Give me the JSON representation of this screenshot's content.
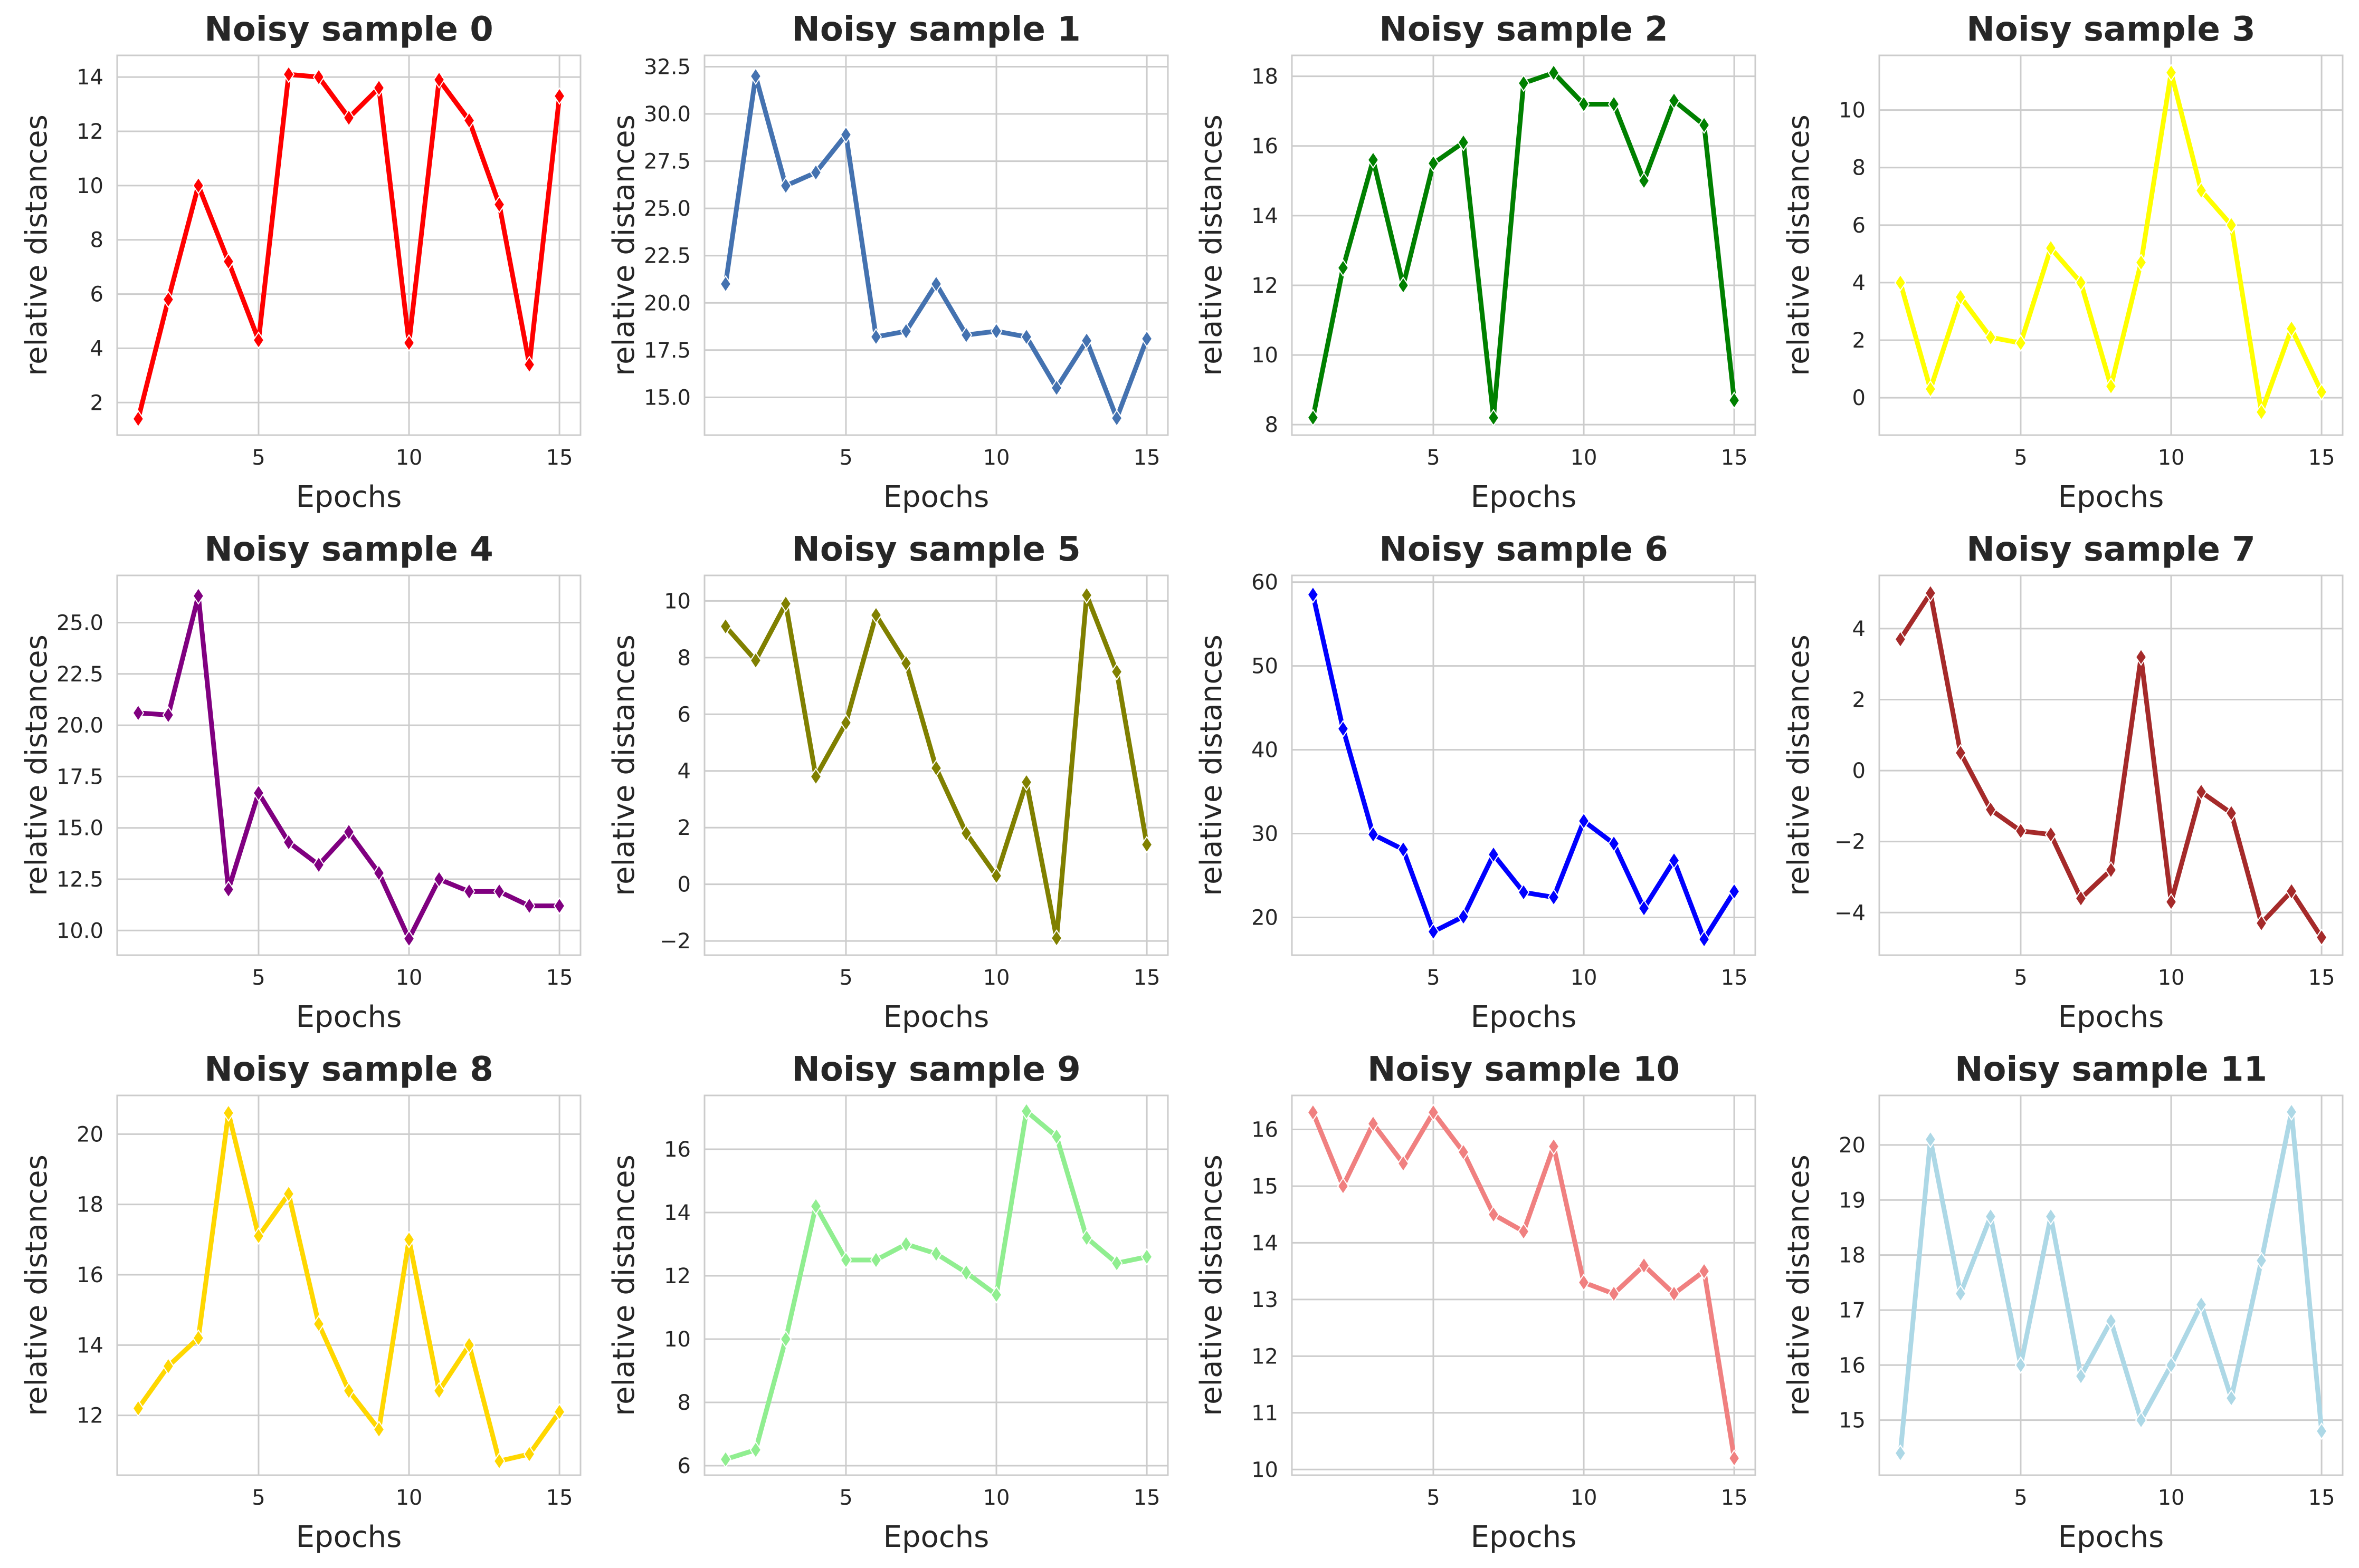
{
  "chart_data": [
    {
      "type": "line",
      "title": "Noisy sample 0",
      "xlabel": "Epochs",
      "ylabel": "relative distances",
      "color": "#ff0000",
      "x": [
        1,
        2,
        3,
        4,
        5,
        6,
        7,
        8,
        9,
        10,
        11,
        12,
        13,
        14,
        15
      ],
      "values": [
        1.4,
        5.8,
        10.0,
        7.2,
        4.3,
        14.1,
        14.0,
        12.5,
        13.6,
        4.2,
        13.9,
        12.4,
        9.3,
        3.4,
        13.3
      ],
      "ylim": [
        0.8,
        14.8
      ],
      "xlim": [
        0.3,
        15.7
      ],
      "yticks": [
        "2",
        "4",
        "6",
        "8",
        "10",
        "12",
        "14"
      ],
      "xticks": [
        "5",
        "10",
        "15"
      ]
    },
    {
      "type": "line",
      "title": "Noisy sample 1",
      "xlabel": "Epochs",
      "ylabel": "relative distances",
      "color": "#4472b0",
      "x": [
        1,
        2,
        3,
        4,
        5,
        6,
        7,
        8,
        9,
        10,
        11,
        12,
        13,
        14,
        15
      ],
      "values": [
        21.0,
        32.0,
        26.2,
        26.9,
        28.9,
        18.2,
        18.5,
        21.0,
        18.3,
        18.5,
        18.2,
        15.5,
        18.0,
        13.9,
        18.1
      ],
      "ylim": [
        13.0,
        33.1
      ],
      "xlim": [
        0.3,
        15.7
      ],
      "yticks": [
        "15.0",
        "17.5",
        "20.0",
        "22.5",
        "25.0",
        "27.5",
        "30.0",
        "32.5"
      ],
      "xticks": [
        "5",
        "10",
        "15"
      ]
    },
    {
      "type": "line",
      "title": "Noisy sample 2",
      "xlabel": "Epochs",
      "ylabel": "relative distances",
      "color": "#008000",
      "x": [
        1,
        2,
        3,
        4,
        5,
        6,
        7,
        8,
        9,
        10,
        11,
        12,
        13,
        14,
        15
      ],
      "values": [
        8.2,
        12.5,
        15.6,
        12.0,
        15.5,
        16.1,
        8.2,
        17.8,
        18.1,
        17.2,
        17.2,
        15.0,
        17.3,
        16.6,
        8.7
      ],
      "ylim": [
        7.7,
        18.6
      ],
      "xlim": [
        0.3,
        15.7
      ],
      "yticks": [
        "8",
        "10",
        "12",
        "14",
        "16",
        "18"
      ],
      "xticks": [
        "5",
        "10",
        "15"
      ]
    },
    {
      "type": "line",
      "title": "Noisy sample 3",
      "xlabel": "Epochs",
      "ylabel": "relative distances",
      "color": "#ffff00",
      "x": [
        1,
        2,
        3,
        4,
        5,
        6,
        7,
        8,
        9,
        10,
        11,
        12,
        13,
        14,
        15
      ],
      "values": [
        4.0,
        0.3,
        3.5,
        2.1,
        1.9,
        5.2,
        4.0,
        0.4,
        4.7,
        11.3,
        7.2,
        6.0,
        -0.5,
        2.4,
        0.2
      ],
      "ylim": [
        -1.3,
        11.9
      ],
      "xlim": [
        0.3,
        15.7
      ],
      "yticks": [
        "0",
        "2",
        "4",
        "6",
        "8",
        "10"
      ],
      "xticks": [
        "5",
        "10",
        "15"
      ]
    },
    {
      "type": "line",
      "title": "Noisy sample 4",
      "xlabel": "Epochs",
      "ylabel": "relative distances",
      "color": "#800080",
      "x": [
        1,
        2,
        3,
        4,
        5,
        6,
        7,
        8,
        9,
        10,
        11,
        12,
        13,
        14,
        15
      ],
      "values": [
        20.6,
        20.5,
        26.3,
        12.0,
        16.7,
        14.3,
        13.2,
        14.8,
        12.8,
        9.6,
        12.5,
        11.9,
        11.9,
        11.2,
        11.2
      ],
      "ylim": [
        8.8,
        27.3
      ],
      "xlim": [
        0.3,
        15.7
      ],
      "yticks": [
        "10.0",
        "12.5",
        "15.0",
        "17.5",
        "20.0",
        "22.5",
        "25.0"
      ],
      "xticks": [
        "5",
        "10",
        "15"
      ]
    },
    {
      "type": "line",
      "title": "Noisy sample 5",
      "xlabel": "Epochs",
      "ylabel": "relative distances",
      "color": "#808000",
      "x": [
        1,
        2,
        3,
        4,
        5,
        6,
        7,
        8,
        9,
        10,
        11,
        12,
        13,
        14,
        15
      ],
      "values": [
        9.1,
        7.9,
        9.9,
        3.8,
        5.7,
        9.5,
        7.8,
        4.1,
        1.8,
        0.3,
        3.6,
        -1.9,
        10.2,
        7.5,
        1.4
      ],
      "ylim": [
        -2.5,
        10.9
      ],
      "xlim": [
        0.3,
        15.7
      ],
      "yticks": [
        "−2",
        "0",
        "2",
        "4",
        "6",
        "8",
        "10"
      ],
      "xticks": [
        "5",
        "10",
        "15"
      ]
    },
    {
      "type": "line",
      "title": "Noisy sample 6",
      "xlabel": "Epochs",
      "ylabel": "relative distances",
      "color": "#0000ff",
      "x": [
        1,
        2,
        3,
        4,
        5,
        6,
        7,
        8,
        9,
        10,
        11,
        12,
        13,
        14,
        15
      ],
      "values": [
        58.5,
        42.5,
        29.9,
        28.1,
        18.3,
        20.1,
        27.5,
        23.0,
        22.4,
        31.5,
        28.8,
        21.1,
        26.8,
        17.4,
        23.1
      ],
      "ylim": [
        15.5,
        60.8
      ],
      "xlim": [
        0.3,
        15.7
      ],
      "yticks": [
        "20",
        "30",
        "40",
        "50",
        "60"
      ],
      "xticks": [
        "5",
        "10",
        "15"
      ]
    },
    {
      "type": "line",
      "title": "Noisy sample 7",
      "xlabel": "Epochs",
      "ylabel": "relative distances",
      "color": "#a52a2a",
      "x": [
        1,
        2,
        3,
        4,
        5,
        6,
        7,
        8,
        9,
        10,
        11,
        12,
        13,
        14,
        15
      ],
      "values": [
        3.7,
        5.0,
        0.5,
        -1.1,
        -1.7,
        -1.8,
        -3.6,
        -2.8,
        3.2,
        -3.7,
        -0.6,
        -1.2,
        -4.3,
        -3.4,
        -4.7
      ],
      "ylim": [
        -5.2,
        5.5
      ],
      "xlim": [
        0.3,
        15.7
      ],
      "yticks": [
        "−4",
        "−2",
        "0",
        "2",
        "4"
      ],
      "xticks": [
        "5",
        "10",
        "15"
      ]
    },
    {
      "type": "line",
      "title": "Noisy sample 8",
      "xlabel": "Epochs",
      "ylabel": "relative distances",
      "color": "#ffd700",
      "x": [
        1,
        2,
        3,
        4,
        5,
        6,
        7,
        8,
        9,
        10,
        11,
        12,
        13,
        14,
        15
      ],
      "values": [
        12.2,
        13.4,
        14.2,
        20.6,
        17.1,
        18.3,
        14.6,
        12.7,
        11.6,
        17.0,
        12.7,
        14.0,
        10.7,
        10.9,
        12.1
      ],
      "ylim": [
        10.3,
        21.1
      ],
      "xlim": [
        0.3,
        15.7
      ],
      "yticks": [
        "12",
        "14",
        "16",
        "18",
        "20"
      ],
      "xticks": [
        "5",
        "10",
        "15"
      ]
    },
    {
      "type": "line",
      "title": "Noisy sample 9",
      "xlabel": "Epochs",
      "ylabel": "relative distances",
      "color": "#90ee90",
      "x": [
        1,
        2,
        3,
        4,
        5,
        6,
        7,
        8,
        9,
        10,
        11,
        12,
        13,
        14,
        15
      ],
      "values": [
        6.2,
        6.5,
        10.0,
        14.2,
        12.5,
        12.5,
        13.0,
        12.7,
        12.1,
        11.4,
        17.2,
        16.4,
        13.2,
        12.4,
        12.6
      ],
      "ylim": [
        5.7,
        17.7
      ],
      "xlim": [
        0.3,
        15.7
      ],
      "yticks": [
        "6",
        "8",
        "10",
        "12",
        "14",
        "16"
      ],
      "xticks": [
        "5",
        "10",
        "15"
      ]
    },
    {
      "type": "line",
      "title": "Noisy sample 10",
      "xlabel": "Epochs",
      "ylabel": "relative distances",
      "color": "#f08080",
      "x": [
        1,
        2,
        3,
        4,
        5,
        6,
        7,
        8,
        9,
        10,
        11,
        12,
        13,
        14,
        15
      ],
      "values": [
        16.3,
        15.0,
        16.1,
        15.4,
        16.3,
        15.6,
        14.5,
        14.2,
        15.7,
        13.3,
        13.1,
        13.6,
        13.1,
        13.5,
        10.2
      ],
      "ylim": [
        9.9,
        16.6
      ],
      "xlim": [
        0.3,
        15.7
      ],
      "yticks": [
        "10",
        "11",
        "12",
        "13",
        "14",
        "15",
        "16"
      ],
      "xticks": [
        "5",
        "10",
        "15"
      ]
    },
    {
      "type": "line",
      "title": "Noisy sample 11",
      "xlabel": "Epochs",
      "ylabel": "relative distances",
      "color": "#add8e6",
      "x": [
        1,
        2,
        3,
        4,
        5,
        6,
        7,
        8,
        9,
        10,
        11,
        12,
        13,
        14,
        15
      ],
      "values": [
        14.4,
        20.1,
        17.3,
        18.7,
        16.0,
        18.7,
        15.8,
        16.8,
        15.0,
        16.0,
        17.1,
        15.4,
        17.9,
        20.6,
        14.8
      ],
      "ylim": [
        14.0,
        20.9
      ],
      "xlim": [
        0.3,
        15.7
      ],
      "yticks": [
        "15",
        "16",
        "17",
        "18",
        "19",
        "20"
      ],
      "xticks": [
        "5",
        "10",
        "15"
      ]
    }
  ]
}
